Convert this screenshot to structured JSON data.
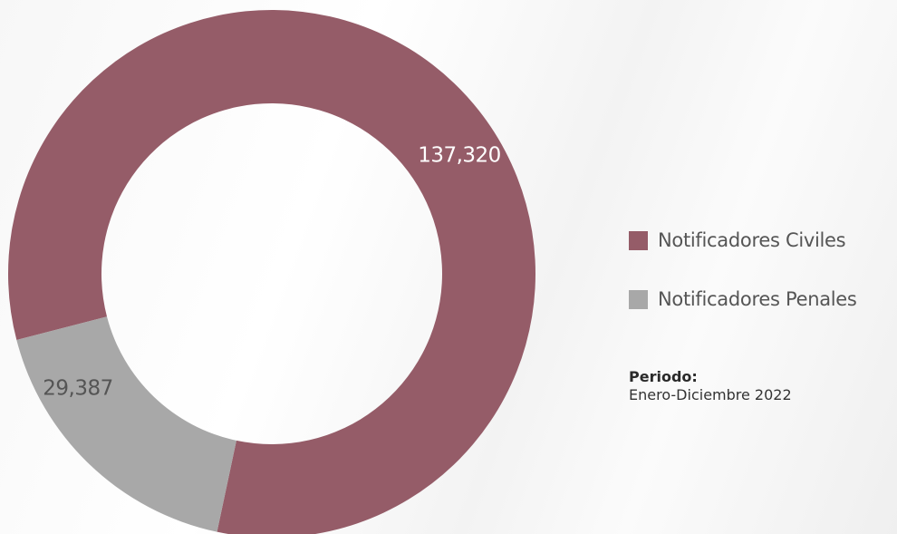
{
  "chart_data": {
    "type": "pie",
    "donut": true,
    "categories": [
      "Notificadores Civiles",
      "Notificadores Penales"
    ],
    "values": [
      137320,
      29387
    ],
    "value_labels": [
      "137,320",
      "29,387"
    ],
    "colors": [
      "#955c68",
      "#a8a8a8"
    ],
    "label_colors": [
      "#ffffff",
      "#555555"
    ],
    "legend_position": "right"
  },
  "period": {
    "title": "Periodo:",
    "value": "Enero-Diciembre 2022"
  }
}
